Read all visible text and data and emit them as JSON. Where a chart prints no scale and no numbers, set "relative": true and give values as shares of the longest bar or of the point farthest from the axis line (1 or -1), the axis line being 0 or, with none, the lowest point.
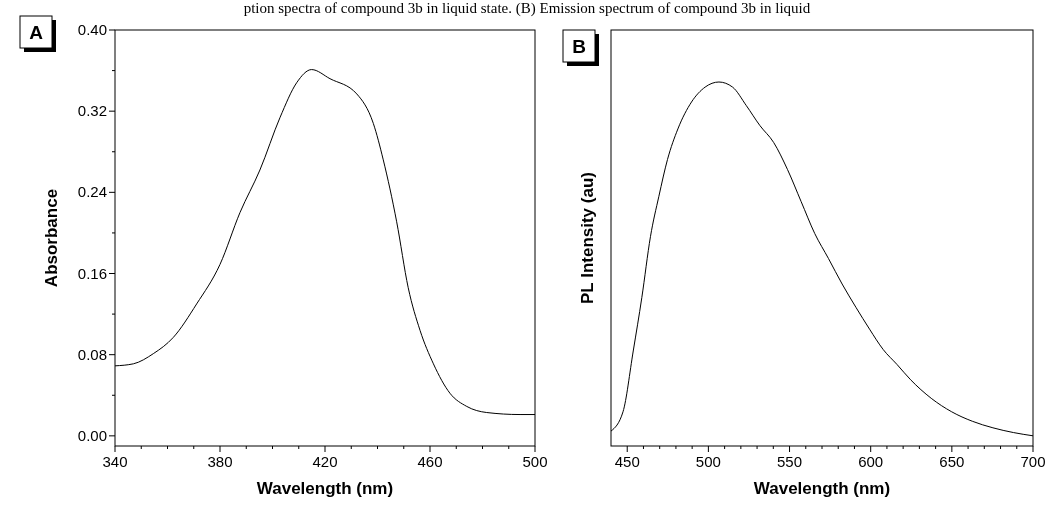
{
  "chart_data": [
    {
      "type": "line",
      "annotations": [
        "ption spectra of compound 3b in liquid state. (B) Emission spectrum of compound 3b in liquid",
        "A"
      ],
      "xlabel": "Wavelength (nm)",
      "ylabel": "Absorbance",
      "xlim": [
        340,
        500
      ],
      "ylim": [
        -0.01,
        0.4
      ],
      "xticks": [
        340,
        {
          "value": 350,
          "label": null
        },
        {
          "value": 360,
          "label": null
        },
        {
          "value": 370,
          "label": null
        },
        380,
        {
          "value": 390,
          "label": null
        },
        {
          "value": 400,
          "label": null
        },
        {
          "value": 410,
          "label": null
        },
        420,
        {
          "value": 430,
          "label": null
        },
        {
          "value": 440,
          "label": null
        },
        {
          "value": 450,
          "label": null
        },
        460,
        {
          "value": 470,
          "label": null
        },
        {
          "value": 480,
          "label": null
        },
        {
          "value": 490,
          "label": null
        },
        500
      ],
      "yticks": [
        {
          "value": 0,
          "label": "0.00"
        },
        {
          "value": 0.04,
          "label": null
        },
        {
          "value": 0.08,
          "label": "0.08"
        },
        {
          "value": 0.12,
          "label": null
        },
        {
          "value": 0.16,
          "label": "0.16"
        },
        {
          "value": 0.2,
          "label": null
        },
        {
          "value": 0.24,
          "label": "0.24"
        },
        {
          "value": 0.28,
          "label": null
        },
        {
          "value": 0.32,
          "label": "0.32"
        },
        {
          "value": 0.36,
          "label": null
        },
        {
          "value": 0.4,
          "label": "0.40"
        }
      ],
      "series": [
        {
          "color": "#000000",
          "x": [
            340,
            347,
            354.6,
            362.2,
            371.1,
            380,
            387.6,
            395.2,
            402.9,
            409.2,
            414.9,
            421.9,
            432.1,
            438.4,
            442.2,
            447.3,
            451.7,
            456.2,
            461.3,
            467.6,
            474,
            481.6,
            494.3,
            500
          ],
          "values": [
            0.069,
            0.071,
            0.081,
            0.097,
            0.13,
            0.169,
            0.22,
            0.262,
            0.314,
            0.348,
            0.361,
            0.352,
            0.337,
            0.308,
            0.272,
            0.211,
            0.146,
            0.104,
            0.071,
            0.042,
            0.029,
            0.023,
            0.021,
            0.021
          ]
        }
      ]
    },
    {
      "type": "line",
      "annotations": [
        "B"
      ],
      "xlabel": "Wavelength (nm)",
      "ylabel": "PL Intensity (au)",
      "relative": true,
      "xlim": [
        440,
        700
      ],
      "xticks": [
        450,
        {
          "value": 460,
          "label": null
        },
        {
          "value": 470,
          "label": null
        },
        {
          "value": 480,
          "label": null
        },
        {
          "value": 490,
          "label": null
        },
        500,
        {
          "value": 510,
          "label": null
        },
        {
          "value": 520,
          "label": null
        },
        {
          "value": 530,
          "label": null
        },
        {
          "value": 540,
          "label": null
        },
        550,
        {
          "value": 560,
          "label": null
        },
        {
          "value": 570,
          "label": null
        },
        {
          "value": 580,
          "label": null
        },
        {
          "value": 590,
          "label": null
        },
        600,
        {
          "value": 610,
          "label": null
        },
        {
          "value": 620,
          "label": null
        },
        {
          "value": 630,
          "label": null
        },
        {
          "value": 640,
          "label": null
        },
        650,
        {
          "value": 660,
          "label": null
        },
        {
          "value": 670,
          "label": null
        },
        {
          "value": 680,
          "label": null
        },
        {
          "value": 690,
          "label": null
        },
        700
      ],
      "series": [
        {
          "color": "#000000",
          "x": [
            440,
            447.4,
            453.7,
            459,
            464.3,
            469.5,
            474.8,
            481.2,
            489.6,
            498,
            506.5,
            514.9,
            523.4,
            531.8,
            540.2,
            548.7,
            557.1,
            565.5,
            574,
            582.4,
            590.9,
            599.3,
            607.7,
            616.2,
            624.6,
            637.3,
            649.9,
            662.6,
            675.3,
            687.9,
            700
          ],
          "values": [
            0.041,
            0.094,
            0.261,
            0.408,
            0.575,
            0.686,
            0.787,
            0.871,
            0.945,
            0.986,
            1,
            0.986,
            0.935,
            0.88,
            0.834,
            0.76,
            0.672,
            0.584,
            0.515,
            0.445,
            0.381,
            0.321,
            0.265,
            0.224,
            0.182,
            0.131,
            0.094,
            0.068,
            0.05,
            0.037,
            0.028
          ]
        }
      ]
    }
  ]
}
